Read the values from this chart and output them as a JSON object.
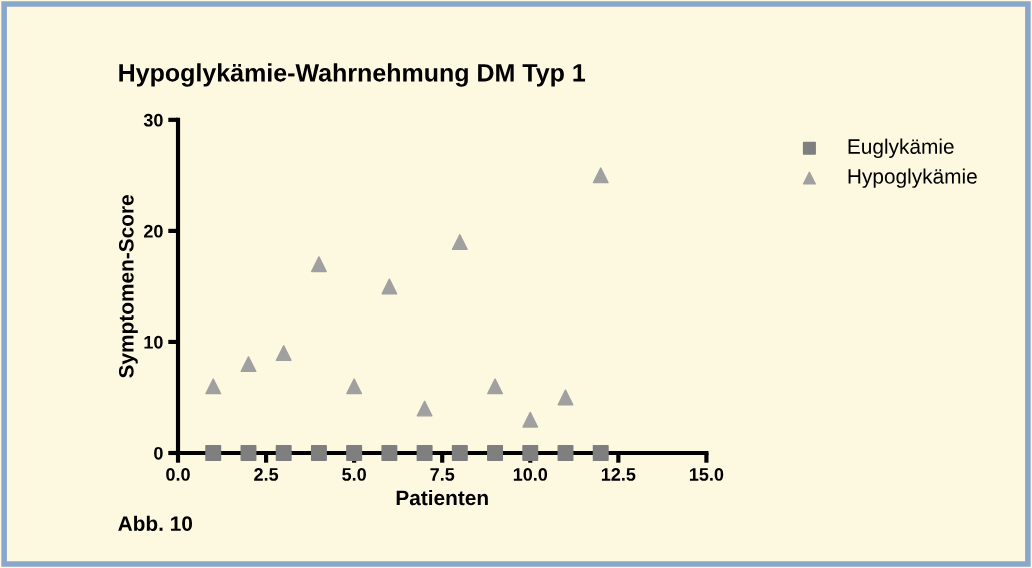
{
  "chart_data": {
    "type": "scatter",
    "title": "Hypoglykämie-Wahrnehmung DM Typ 1",
    "xlabel": "Patienten",
    "ylabel": "Symptomen-Score",
    "x": [
      1,
      2,
      3,
      4,
      5,
      6,
      7,
      8,
      9,
      10,
      11,
      12
    ],
    "series": [
      {
        "name": "Euglykämie",
        "color": "#7f7f7f",
        "marker": "square",
        "values": [
          0,
          0,
          0,
          0,
          0,
          0,
          0,
          0,
          0,
          0,
          0,
          0
        ]
      },
      {
        "name": "Hypoglykämie",
        "color": "#a0a0a0",
        "marker": "triangle",
        "values": [
          6,
          8,
          9,
          17,
          6,
          15,
          4,
          19,
          6,
          3,
          5,
          25
        ]
      }
    ],
    "xlim": [
      0,
      15
    ],
    "xticks": [
      {
        "value": 0,
        "label": "0.0"
      },
      {
        "value": 2.5,
        "label": "2.5"
      },
      {
        "value": 5,
        "label": "5.0"
      },
      {
        "value": 7.5,
        "label": "7.5"
      },
      {
        "value": 10,
        "label": "10.0"
      },
      {
        "value": 12.5,
        "label": "12.5"
      },
      {
        "value": 15,
        "label": "15.0"
      }
    ],
    "ylim": [
      0,
      30
    ],
    "yticks": [
      0,
      10,
      20,
      30
    ],
    "grid": false,
    "legend": "top right",
    "annotations": [
      "Abb. 10"
    ]
  }
}
